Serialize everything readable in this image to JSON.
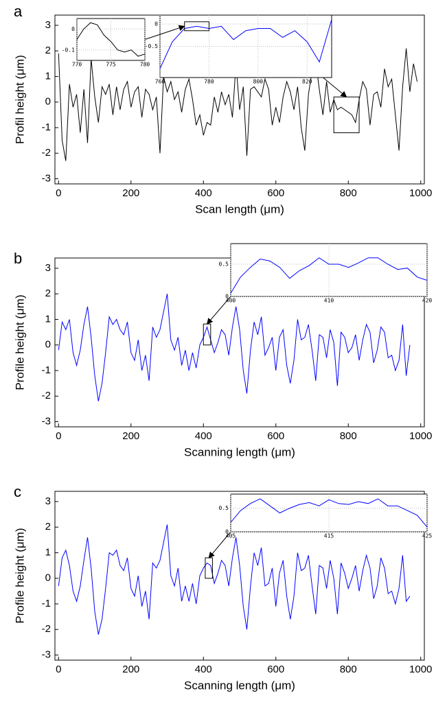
{
  "chart_data": [
    {
      "type": "line",
      "label": "a",
      "ylabel": "Profil height (μm)",
      "xlabel": "Scan length (μm)",
      "color": "#000000",
      "xlim": [
        -10,
        1010
      ],
      "ylim": [
        -3.2,
        3.4
      ],
      "xticks": [
        0,
        200,
        400,
        600,
        800,
        1000
      ],
      "yticks": [
        -3,
        -2,
        -1,
        0,
        1,
        2,
        3
      ],
      "x": [
        0,
        10,
        20,
        30,
        40,
        50,
        60,
        70,
        80,
        90,
        100,
        110,
        120,
        130,
        140,
        150,
        160,
        170,
        180,
        190,
        200,
        210,
        220,
        230,
        240,
        250,
        260,
        270,
        280,
        290,
        300,
        310,
        320,
        330,
        340,
        350,
        360,
        370,
        380,
        390,
        400,
        410,
        420,
        430,
        440,
        450,
        460,
        470,
        480,
        490,
        500,
        510,
        520,
        530,
        540,
        550,
        560,
        570,
        580,
        590,
        600,
        610,
        620,
        630,
        640,
        650,
        660,
        670,
        680,
        690,
        700,
        710,
        720,
        730,
        740,
        750,
        760,
        770,
        780,
        790,
        800,
        810,
        820,
        830,
        840,
        850,
        860,
        870,
        880,
        890,
        900,
        910,
        920,
        930,
        940,
        950,
        960,
        970,
        980,
        990
      ],
      "values": [
        1.9,
        -1.5,
        -2.3,
        0.7,
        -0.2,
        0.3,
        -1.2,
        0.5,
        -1.6,
        1.7,
        0.2,
        -0.8,
        0.6,
        0.3,
        0.7,
        -0.5,
        0.6,
        -0.3,
        0.5,
        0.8,
        -0.2,
        0.4,
        0.6,
        -0.6,
        0.5,
        0.3,
        -0.3,
        0.2,
        -2.0,
        1.0,
        0.4,
        0.8,
        0.1,
        0.4,
        -0.4,
        0.5,
        0.9,
        0.1,
        -0.9,
        -0.5,
        -1.3,
        -0.8,
        -0.9,
        0.2,
        -0.4,
        0.4,
        -0.1,
        0.3,
        -0.6,
        1.5,
        -0.3,
        0.6,
        -2.1,
        0.5,
        0.6,
        0.4,
        0.2,
        0.9,
        0.5,
        -0.9,
        -0.2,
        -0.8,
        0.2,
        0.8,
        0.4,
        -0.3,
        0.6,
        -1.0,
        -1.9,
        0.3,
        1.2,
        1.6,
        0.5,
        -0.5,
        0.8,
        -0.4,
        0.1,
        -0.3,
        -0.2,
        -0.3,
        -0.4,
        -0.5,
        -0.8,
        0.1,
        0.8,
        0.5,
        -0.9,
        0.3,
        0.4,
        -0.2,
        1.3,
        0.6,
        0.9,
        -0.5,
        -1.9,
        0.6,
        2.1,
        0.4,
        1.5,
        0.8
      ],
      "insets": [
        {
          "type": "line",
          "color": "#0000ff",
          "xlim": [
            760,
            830
          ],
          "ylim": [
            -1.2,
            0.2
          ],
          "xticks": [
            760,
            780,
            800,
            820
          ],
          "yticks": [
            0,
            -0.5
          ],
          "x": [
            760,
            765,
            770,
            775,
            780,
            785,
            790,
            795,
            800,
            805,
            810,
            815,
            820,
            825,
            830
          ],
          "values": [
            -1.0,
            -0.4,
            -0.1,
            -0.05,
            -0.1,
            -0.05,
            -0.35,
            -0.15,
            -0.1,
            -0.1,
            -0.3,
            -0.15,
            -0.4,
            -0.85,
            0.1
          ]
        },
        {
          "type": "line",
          "color": "#000000",
          "xlim": [
            770,
            780
          ],
          "ylim": [
            -0.15,
            0.05
          ],
          "xticks": [
            770,
            775,
            780
          ],
          "yticks": [
            0,
            -0.1
          ],
          "x": [
            770,
            771,
            772,
            773,
            774,
            775,
            776,
            777,
            778,
            779,
            780
          ],
          "values": [
            -0.05,
            0.0,
            0.03,
            0.02,
            -0.03,
            -0.06,
            -0.1,
            -0.11,
            -0.1,
            -0.13,
            -0.12
          ]
        }
      ]
    },
    {
      "type": "line",
      "label": "b",
      "ylabel": "Profile height (μm)",
      "xlabel": "Scanning length (μm)",
      "color": "#0000ff",
      "xlim": [
        -10,
        1010
      ],
      "ylim": [
        -3.2,
        3.4
      ],
      "xticks": [
        0,
        200,
        400,
        600,
        800,
        1000
      ],
      "yticks": [
        -3,
        -2,
        -1,
        0,
        1,
        2,
        3
      ],
      "x": [
        0,
        10,
        20,
        30,
        40,
        50,
        60,
        70,
        80,
        90,
        100,
        110,
        120,
        130,
        140,
        150,
        160,
        170,
        180,
        190,
        200,
        210,
        220,
        230,
        240,
        250,
        260,
        270,
        280,
        290,
        300,
        310,
        320,
        330,
        340,
        350,
        360,
        370,
        380,
        390,
        400,
        410,
        420,
        430,
        440,
        450,
        460,
        470,
        480,
        490,
        500,
        510,
        520,
        530,
        540,
        550,
        560,
        570,
        580,
        590,
        600,
        610,
        620,
        630,
        640,
        650,
        660,
        670,
        680,
        690,
        700,
        710,
        720,
        730,
        740,
        750,
        760,
        770,
        780,
        790,
        800,
        810,
        820,
        830,
        840,
        850,
        860,
        870,
        880,
        890,
        900,
        910,
        920,
        930,
        940,
        950,
        960,
        970
      ],
      "values": [
        -0.2,
        0.9,
        0.6,
        1.0,
        -0.3,
        -0.8,
        -0.2,
        0.8,
        1.5,
        0.3,
        -1.2,
        -2.2,
        -1.5,
        -0.3,
        1.1,
        0.8,
        1.0,
        0.6,
        0.4,
        0.9,
        -0.3,
        -0.6,
        0.2,
        -1.0,
        -0.4,
        -1.4,
        0.7,
        0.3,
        0.6,
        1.3,
        2.0,
        0.2,
        -0.2,
        0.3,
        -0.8,
        -0.2,
        -1.0,
        -0.3,
        -0.9,
        0.0,
        0.3,
        0.7,
        0.2,
        -0.3,
        0.1,
        0.6,
        0.4,
        -0.4,
        0.7,
        1.5,
        0.6,
        -1.0,
        -1.9,
        -0.2,
        0.9,
        0.4,
        1.1,
        -0.4,
        -0.1,
        0.3,
        -1.0,
        0.3,
        0.6,
        -0.8,
        -1.5,
        -0.6,
        1.0,
        0.2,
        0.3,
        0.8,
        -0.2,
        -1.4,
        0.4,
        0.3,
        -0.5,
        0.6,
        0.1,
        -1.6,
        0.5,
        0.3,
        -0.3,
        -0.1,
        0.4,
        -0.6,
        0.2,
        0.8,
        0.5,
        -0.7,
        -0.2,
        0.7,
        0.5,
        -0.5,
        -0.4,
        -1.0,
        -0.6,
        0.8,
        -1.2,
        0.0
      ],
      "insets": [
        {
          "type": "line",
          "color": "#0000ff",
          "xlim": [
            400,
            420
          ],
          "ylim": [
            0,
            0.82
          ],
          "xticks": [
            400,
            410,
            420
          ],
          "yticks": [
            0,
            0.5
          ],
          "x": [
            400,
            401,
            402,
            403,
            404,
            405,
            406,
            407,
            408,
            409,
            410,
            411,
            412,
            413,
            414,
            415,
            416,
            417,
            418,
            419,
            420
          ],
          "values": [
            0.05,
            0.3,
            0.45,
            0.58,
            0.55,
            0.45,
            0.28,
            0.4,
            0.48,
            0.6,
            0.5,
            0.5,
            0.45,
            0.52,
            0.6,
            0.6,
            0.5,
            0.42,
            0.44,
            0.3,
            0.25
          ]
        }
      ]
    },
    {
      "type": "line",
      "label": "c",
      "ylabel": "Profile height (μm)",
      "xlabel": "Scanning length (μm)",
      "color": "#0000ff",
      "xlim": [
        -10,
        1010
      ],
      "ylim": [
        -3.2,
        3.4
      ],
      "xticks": [
        0,
        200,
        400,
        600,
        800,
        1000
      ],
      "yticks": [
        -3,
        -2,
        -1,
        0,
        1,
        2,
        3
      ],
      "x": [
        0,
        10,
        20,
        30,
        40,
        50,
        60,
        70,
        80,
        90,
        100,
        110,
        120,
        130,
        140,
        150,
        160,
        170,
        180,
        190,
        200,
        210,
        220,
        230,
        240,
        250,
        260,
        270,
        280,
        290,
        300,
        310,
        320,
        330,
        340,
        350,
        360,
        370,
        380,
        390,
        400,
        410,
        420,
        430,
        440,
        450,
        460,
        470,
        480,
        490,
        500,
        510,
        520,
        530,
        540,
        550,
        560,
        570,
        580,
        590,
        600,
        610,
        620,
        630,
        640,
        650,
        660,
        670,
        680,
        690,
        700,
        710,
        720,
        730,
        740,
        750,
        760,
        770,
        780,
        790,
        800,
        810,
        820,
        830,
        840,
        850,
        860,
        870,
        880,
        890,
        900,
        910,
        920,
        930,
        940,
        950,
        960,
        970
      ],
      "values": [
        -0.3,
        0.8,
        1.1,
        0.5,
        -0.5,
        -0.9,
        -0.3,
        0.7,
        1.6,
        0.4,
        -1.3,
        -2.2,
        -1.6,
        -0.4,
        1.0,
        0.9,
        1.1,
        0.5,
        0.3,
        0.8,
        -0.4,
        -0.7,
        0.1,
        -1.1,
        -0.5,
        -1.6,
        0.6,
        0.4,
        0.7,
        1.4,
        2.1,
        0.1,
        -0.3,
        0.4,
        -0.9,
        -0.3,
        -0.9,
        -0.2,
        -1.0,
        0.1,
        0.4,
        0.6,
        0.5,
        -0.2,
        0.2,
        0.7,
        0.5,
        -0.3,
        0.8,
        1.6,
        0.5,
        -1.1,
        -2.0,
        -0.3,
        1.0,
        0.5,
        1.2,
        -0.3,
        -0.2,
        0.4,
        -1.1,
        0.2,
        0.7,
        -0.7,
        -1.6,
        -0.7,
        1.0,
        0.3,
        0.4,
        0.9,
        -0.3,
        -1.4,
        0.5,
        0.4,
        -0.4,
        0.7,
        0.0,
        -1.4,
        0.6,
        0.2,
        -0.4,
        0.0,
        0.5,
        -0.5,
        0.3,
        0.9,
        0.4,
        -0.8,
        -0.3,
        0.8,
        0.4,
        -0.6,
        -0.5,
        -1.0,
        -0.4,
        0.9,
        -0.9,
        -0.7
      ],
      "insets": [
        {
          "type": "line",
          "color": "#0000ff",
          "xlim": [
            405,
            425
          ],
          "ylim": [
            0,
            0.8
          ],
          "xticks": [
            405,
            415,
            425
          ],
          "yticks": [
            0,
            0.5
          ],
          "x": [
            405,
            406,
            407,
            408,
            409,
            410,
            411,
            412,
            413,
            414,
            415,
            416,
            417,
            418,
            419,
            420,
            421,
            422,
            423,
            424,
            425
          ],
          "values": [
            0.2,
            0.45,
            0.6,
            0.7,
            0.55,
            0.4,
            0.5,
            0.58,
            0.62,
            0.55,
            0.68,
            0.6,
            0.58,
            0.64,
            0.6,
            0.7,
            0.55,
            0.55,
            0.45,
            0.35,
            0.1
          ]
        }
      ]
    }
  ]
}
